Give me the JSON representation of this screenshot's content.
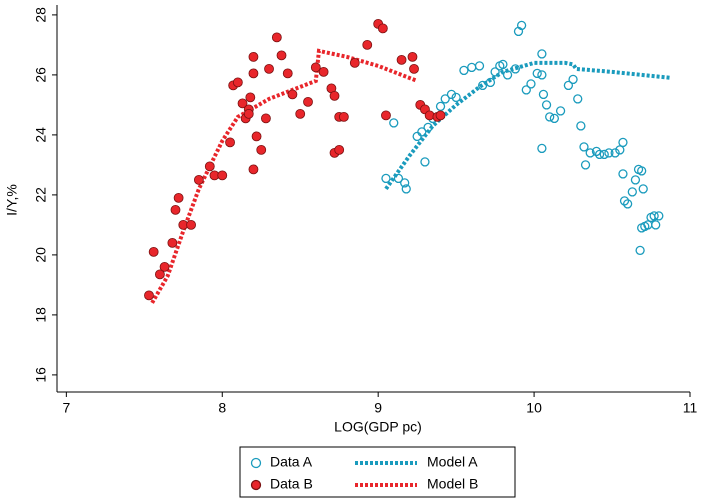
{
  "chart_data": {
    "type": "scatter",
    "x_label": "LOG(GDP pc)",
    "y_label": "I/Y,%",
    "xlim": [
      6.94,
      11.0
    ],
    "ylim": [
      15.43,
      28.33
    ],
    "xticks": [
      7,
      8,
      9,
      10,
      11
    ],
    "yticks": [
      16,
      18,
      20,
      22,
      24,
      26,
      28
    ],
    "grid": false,
    "legend": "bottom",
    "series": [
      {
        "name": "Data A",
        "type": "scatter",
        "marker": "hollow",
        "color": "#1a9bbd",
        "x": [
          9.05,
          9.1,
          9.13,
          9.17,
          9.18,
          9.25,
          9.28,
          9.3,
          9.32,
          9.35,
          9.38,
          9.4,
          9.43,
          9.47,
          9.5,
          9.55,
          9.6,
          9.65,
          9.67,
          9.72,
          9.75,
          9.78,
          9.8,
          9.83,
          9.88,
          9.9,
          9.92,
          9.95,
          9.98,
          10.02,
          10.05,
          10.05,
          10.05,
          10.06,
          10.08,
          10.1,
          10.13,
          10.17,
          10.22,
          10.25,
          10.28,
          10.3,
          10.32,
          10.33,
          10.36,
          10.4,
          10.42,
          10.45,
          10.48,
          10.52,
          10.55,
          10.57,
          10.57,
          10.58,
          10.6,
          10.63,
          10.65,
          10.67,
          10.69,
          10.68,
          10.69,
          10.7,
          10.71,
          10.73,
          10.75,
          10.77,
          10.8,
          10.78
        ],
        "values": [
          22.55,
          24.4,
          22.55,
          22.4,
          22.2,
          23.95,
          24.1,
          23.1,
          24.25,
          24.55,
          24.6,
          24.95,
          25.2,
          25.35,
          25.25,
          26.15,
          26.25,
          26.3,
          25.65,
          25.75,
          26.1,
          26.3,
          26.35,
          26.0,
          26.2,
          27.45,
          27.65,
          25.5,
          25.7,
          26.05,
          26.0,
          26.7,
          23.55,
          25.35,
          25.0,
          24.6,
          24.55,
          24.8,
          25.65,
          25.85,
          25.2,
          24.3,
          23.6,
          23.0,
          23.4,
          23.45,
          23.35,
          23.35,
          23.4,
          23.4,
          23.5,
          23.75,
          22.7,
          21.8,
          21.7,
          22.1,
          22.5,
          22.85,
          22.8,
          20.15,
          20.9,
          22.2,
          20.95,
          21.0,
          21.25,
          21.3,
          21.3,
          21.0
        ]
      },
      {
        "name": "Data B",
        "type": "scatter",
        "marker": "filled",
        "color": "#e8262b",
        "x": [
          7.53,
          7.56,
          7.6,
          7.63,
          7.68,
          7.7,
          7.72,
          7.75,
          7.8,
          7.85,
          7.92,
          7.95,
          8.0,
          8.05,
          8.07,
          8.1,
          8.13,
          8.15,
          8.17,
          8.17,
          8.18,
          8.2,
          8.2,
          8.2,
          8.22,
          8.25,
          8.28,
          8.3,
          8.35,
          8.38,
          8.42,
          8.45,
          8.5,
          8.55,
          8.6,
          8.65,
          8.7,
          8.72,
          8.72,
          8.75,
          8.75,
          8.78,
          8.85,
          8.93,
          9.0,
          9.03,
          9.05,
          9.15,
          9.22,
          9.23,
          9.27,
          9.3,
          9.33,
          9.38,
          9.4
        ],
        "values": [
          18.65,
          20.1,
          19.35,
          19.6,
          20.4,
          21.5,
          21.9,
          21.0,
          21.0,
          22.5,
          22.95,
          22.65,
          22.65,
          23.75,
          25.65,
          25.75,
          25.05,
          24.55,
          24.85,
          24.7,
          25.25,
          26.05,
          26.6,
          22.85,
          23.95,
          23.5,
          24.55,
          26.2,
          27.25,
          26.65,
          26.05,
          25.35,
          24.7,
          25.1,
          26.25,
          26.1,
          25.55,
          25.3,
          23.4,
          23.5,
          24.6,
          24.6,
          26.4,
          27.0,
          27.7,
          27.55,
          24.65,
          26.5,
          26.6,
          26.2,
          25.0,
          24.85,
          24.65,
          24.6,
          24.65
        ]
      },
      {
        "name": "Model A",
        "type": "line",
        "color": "#1a9bbd",
        "x": [
          9.05,
          9.2,
          9.35,
          9.5,
          9.65,
          9.8,
          10.0,
          10.2,
          10.25,
          10.27,
          10.5,
          10.88
        ],
        "values": [
          22.2,
          23.3,
          24.3,
          25.0,
          25.6,
          26.1,
          26.4,
          26.4,
          26.35,
          26.2,
          26.1,
          25.9
        ]
      },
      {
        "name": "Model B",
        "type": "line",
        "color": "#e8262b",
        "x": [
          7.55,
          7.65,
          7.75,
          7.85,
          8.0,
          8.1,
          8.3,
          8.5,
          8.6,
          8.62,
          8.8,
          9.0,
          9.25
        ],
        "values": [
          18.4,
          19.3,
          20.8,
          22.2,
          23.8,
          24.6,
          25.2,
          25.6,
          25.8,
          26.8,
          26.6,
          26.3,
          25.8
        ]
      }
    ]
  }
}
